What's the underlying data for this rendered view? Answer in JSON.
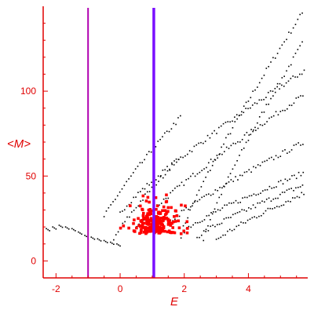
{
  "chart_data": {
    "type": "scatter",
    "title": "",
    "xlabel": "E",
    "ylabel": "<M>",
    "xlim": [
      -2.4,
      5.85
    ],
    "ylim": [
      -10,
      150
    ],
    "x_ticks": [
      -2,
      0,
      2,
      4
    ],
    "y_ticks": [
      0,
      50,
      100
    ],
    "grid": false,
    "legend": "none",
    "colors": {
      "axis": "#e00000",
      "tick_labels": "#e00000",
      "black_points": "#000000",
      "red_points": "#ff0000",
      "line_left": "#b000b0",
      "line_right": "#7a10ff"
    },
    "vertical_lines": [
      {
        "x": -1.0,
        "color": "#b000b0"
      },
      {
        "x": 1.05,
        "color": "#7a10ff"
      }
    ],
    "bands": [
      {
        "x_start": 1.9,
        "x_end": 5.75,
        "y_start": 15,
        "y_end": 148
      },
      {
        "x_start": 2.6,
        "x_end": 5.75,
        "y_start": 13,
        "y_end": 130
      },
      {
        "x_start": 0.0,
        "x_end": 5.75,
        "y_start": 28,
        "y_end": 112
      },
      {
        "x_start": 0.45,
        "x_end": 5.75,
        "y_start": 18,
        "y_end": 98
      },
      {
        "x_start": -0.5,
        "x_end": 1.9,
        "y_start": 25,
        "y_end": 85
      },
      {
        "x_start": -0.2,
        "x_end": 1.9,
        "y_start": 12,
        "y_end": 62
      },
      {
        "x_start": 1.5,
        "x_end": 5.75,
        "y_start": 22,
        "y_end": 70
      },
      {
        "x_start": 2.0,
        "x_end": 5.75,
        "y_start": 18,
        "y_end": 52
      },
      {
        "x_start": 2.4,
        "x_end": 5.75,
        "y_start": 14,
        "y_end": 45
      },
      {
        "x_start": 3.0,
        "x_end": 5.75,
        "y_start": 12,
        "y_end": 40
      }
    ],
    "left_curve": [
      {
        "x": -2.3,
        "y": 19
      },
      {
        "x": -2.1,
        "y": 20
      },
      {
        "x": -1.9,
        "y": 21
      },
      {
        "x": -1.7,
        "y": 20
      },
      {
        "x": -1.5,
        "y": 19
      },
      {
        "x": -1.3,
        "y": 17
      },
      {
        "x": -1.1,
        "y": 15
      },
      {
        "x": -0.9,
        "y": 14
      },
      {
        "x": -0.7,
        "y": 13
      },
      {
        "x": -0.5,
        "y": 12
      },
      {
        "x": -0.3,
        "y": 11
      },
      {
        "x": -0.1,
        "y": 10
      }
    ],
    "red_cluster": {
      "x_min": -0.1,
      "x_max": 2.1,
      "y_min": 4,
      "y_max": 58,
      "center_x": 1.1,
      "center_y": 16
    }
  }
}
